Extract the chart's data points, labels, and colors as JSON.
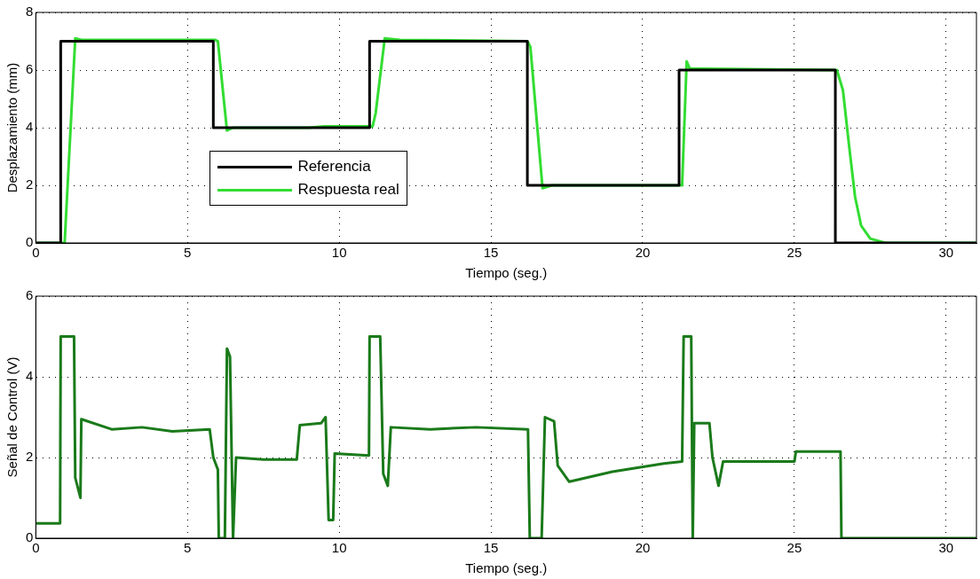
{
  "chart_data": [
    {
      "type": "line",
      "xlabel": "Tiempo (seg.)",
      "ylabel": "Desplazamiento (mm)",
      "xlim": [
        0,
        31
      ],
      "xticks": [
        0,
        5,
        10,
        15,
        20,
        25,
        30
      ],
      "ylim": [
        0,
        8
      ],
      "yticks": [
        0,
        2,
        4,
        6,
        8
      ],
      "grid": true,
      "legend": "bottom left",
      "marker": "none",
      "series": [
        {
          "name": "Referencia",
          "color": "#000000",
          "x": [
            0,
            0.82,
            0.82,
            5.85,
            5.85,
            11.0,
            11.0,
            16.2,
            16.2,
            21.2,
            21.2,
            26.35,
            26.35,
            31
          ],
          "values": [
            0,
            0,
            7,
            7,
            4,
            4,
            7,
            7,
            2,
            2,
            6,
            6,
            0,
            0
          ]
        },
        {
          "name": "Respuesta real",
          "color": "#33dd33",
          "x": [
            0,
            0.95,
            1.3,
            1.5,
            5.9,
            6.0,
            6.3,
            6.5,
            9,
            9.5,
            11.1,
            11.2,
            11.5,
            12,
            16.2,
            16.3,
            16.7,
            17.0,
            21.3,
            21.45,
            21.55,
            22,
            26.4,
            26.6,
            26.8,
            27.0,
            27.2,
            27.5,
            28,
            31
          ],
          "values": [
            0,
            0,
            7.1,
            7.05,
            7.05,
            7,
            3.9,
            4,
            4,
            4.05,
            4.05,
            4.5,
            7.1,
            7.05,
            7,
            6.8,
            1.9,
            2,
            2,
            6.3,
            6.05,
            6.05,
            6,
            5.3,
            3.4,
            1.6,
            0.6,
            0.15,
            0,
            0
          ]
        }
      ]
    },
    {
      "type": "line",
      "xlabel": "Tiempo (seg.)",
      "ylabel": "Señal de Control (V)",
      "xlim": [
        0,
        31
      ],
      "xticks": [
        0,
        5,
        10,
        15,
        20,
        25,
        30
      ],
      "ylim": [
        0,
        6
      ],
      "yticks": [
        0,
        2,
        4,
        6
      ],
      "grid": true,
      "marker": "none",
      "series": [
        {
          "color": "#1a7a1a",
          "x": [
            0,
            0.8,
            0.82,
            1.26,
            1.3,
            1.47,
            1.5,
            2.5,
            3.5,
            4.5,
            5.73,
            5.85,
            6.0,
            6.03,
            6.23,
            6.3,
            6.4,
            6.5,
            6.6,
            7.5,
            8.6,
            8.7,
            9.4,
            9.55,
            9.65,
            9.8,
            9.85,
            10.98,
            11.0,
            11.35,
            11.45,
            11.6,
            11.7,
            13,
            14.5,
            16.22,
            16.28,
            16.67,
            16.78,
            17.08,
            17.2,
            17.58,
            19,
            20.7,
            21.3,
            21.35,
            21.6,
            21.65,
            21.7,
            22.2,
            22.3,
            22.5,
            22.65,
            25.0,
            25.05,
            26.52,
            26.55,
            31
          ],
          "values": [
            0.37,
            0.37,
            5.0,
            5.0,
            1.5,
            1.0,
            2.95,
            2.7,
            2.75,
            2.65,
            2.7,
            2.0,
            1.7,
            0,
            0,
            4.7,
            4.5,
            0,
            2.0,
            1.95,
            1.95,
            2.8,
            2.85,
            3.0,
            0.45,
            0.45,
            2.1,
            2.05,
            5.0,
            5.0,
            1.6,
            1.3,
            2.75,
            2.7,
            2.75,
            2.7,
            0,
            0,
            3.0,
            2.9,
            1.8,
            1.4,
            1.65,
            1.85,
            1.9,
            5.0,
            5.0,
            0,
            2.85,
            2.85,
            2.0,
            1.3,
            1.9,
            1.9,
            2.15,
            2.15,
            0,
            0
          ]
        }
      ]
    }
  ]
}
